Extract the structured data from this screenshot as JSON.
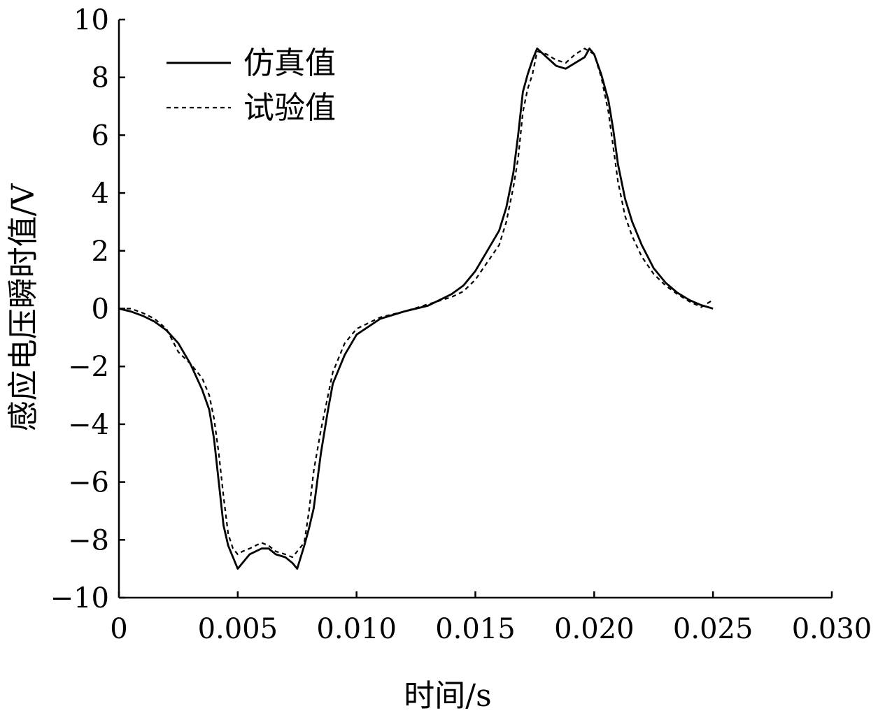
{
  "chart_data": {
    "type": "line",
    "title": "",
    "xlabel": "时间/s",
    "ylabel": "感应电压瞬时值/V",
    "xlim": [
      0,
      0.03
    ],
    "ylim": [
      -10,
      10
    ],
    "x_ticks": [
      0,
      0.005,
      0.01,
      0.015,
      0.02,
      0.025,
      0.03
    ],
    "x_tick_labels": [
      "0",
      "0.005",
      "0.010",
      "0.015",
      "0.020",
      "0.025",
      "0.030"
    ],
    "y_ticks": [
      -10,
      -8,
      -6,
      -4,
      -2,
      0,
      2,
      4,
      6,
      8,
      10
    ],
    "y_tick_labels": [
      "−10",
      "−8",
      "−6",
      "−4",
      "−2",
      "0",
      "2",
      "4",
      "6",
      "8",
      "10"
    ],
    "grid": false,
    "legend_position": "top-left",
    "series": [
      {
        "name": "仿真值",
        "style": "solid",
        "color": "#000000",
        "x": [
          0,
          0.0005,
          0.001,
          0.0015,
          0.002,
          0.0025,
          0.003,
          0.0035,
          0.0038,
          0.004,
          0.0042,
          0.0044,
          0.0046,
          0.0048,
          0.005,
          0.0052,
          0.0055,
          0.006,
          0.0063,
          0.0066,
          0.007,
          0.0073,
          0.0075,
          0.0078,
          0.008,
          0.0082,
          0.0085,
          0.0088,
          0.009,
          0.0095,
          0.01,
          0.011,
          0.012,
          0.013,
          0.014,
          0.0145,
          0.015,
          0.0155,
          0.016,
          0.0163,
          0.0166,
          0.0168,
          0.017,
          0.0172,
          0.0174,
          0.0176,
          0.018,
          0.0184,
          0.0188,
          0.0192,
          0.0196,
          0.0198,
          0.02,
          0.0203,
          0.0206,
          0.0208,
          0.021,
          0.0213,
          0.0216,
          0.022,
          0.0225,
          0.023,
          0.0235,
          0.024,
          0.0245,
          0.025
        ],
        "y": [
          0,
          -0.1,
          -0.25,
          -0.45,
          -0.75,
          -1.2,
          -1.9,
          -2.8,
          -3.5,
          -4.5,
          -6.0,
          -7.5,
          -8.2,
          -8.6,
          -9.0,
          -8.8,
          -8.5,
          -8.3,
          -8.3,
          -8.5,
          -8.6,
          -8.8,
          -9.0,
          -8.2,
          -7.6,
          -6.9,
          -5.0,
          -3.5,
          -2.6,
          -1.6,
          -0.9,
          -0.35,
          -0.1,
          0.1,
          0.5,
          0.8,
          1.3,
          2.0,
          2.7,
          3.5,
          4.7,
          6.0,
          7.5,
          8.1,
          8.6,
          9.0,
          8.7,
          8.4,
          8.3,
          8.5,
          8.7,
          9.0,
          8.8,
          8.1,
          7.2,
          6.2,
          5.0,
          3.8,
          3.0,
          2.2,
          1.4,
          0.9,
          0.55,
          0.3,
          0.12,
          0.0
        ]
      },
      {
        "name": "试验值",
        "style": "dashed",
        "color": "#000000",
        "x": [
          0,
          0.0005,
          0.001,
          0.0015,
          0.002,
          0.0025,
          0.003,
          0.0035,
          0.0038,
          0.004,
          0.0042,
          0.0044,
          0.0046,
          0.0048,
          0.005,
          0.0052,
          0.0055,
          0.006,
          0.0063,
          0.0066,
          0.007,
          0.0073,
          0.0075,
          0.0078,
          0.008,
          0.0082,
          0.0085,
          0.0088,
          0.009,
          0.0095,
          0.01,
          0.011,
          0.012,
          0.013,
          0.014,
          0.0145,
          0.015,
          0.0155,
          0.016,
          0.0163,
          0.0166,
          0.0168,
          0.017,
          0.0172,
          0.0174,
          0.0176,
          0.018,
          0.0184,
          0.0188,
          0.0192,
          0.0196,
          0.0198,
          0.02,
          0.0203,
          0.0206,
          0.0208,
          0.021,
          0.0213,
          0.0216,
          0.022,
          0.0225,
          0.023,
          0.0235,
          0.024,
          0.0245,
          0.025
        ],
        "y": [
          0,
          0.0,
          -0.15,
          -0.35,
          -0.7,
          -1.5,
          -1.9,
          -2.4,
          -3.0,
          -3.8,
          -5.0,
          -6.5,
          -7.8,
          -8.3,
          -8.5,
          -8.4,
          -8.3,
          -8.1,
          -8.2,
          -8.4,
          -8.5,
          -8.6,
          -8.4,
          -8.1,
          -7.0,
          -5.6,
          -4.2,
          -3.0,
          -2.2,
          -1.2,
          -0.7,
          -0.3,
          -0.1,
          0.15,
          0.4,
          0.6,
          1.0,
          1.6,
          2.2,
          3.0,
          4.2,
          5.2,
          6.8,
          7.6,
          8.1,
          8.9,
          8.8,
          8.6,
          8.5,
          8.8,
          9.0,
          8.9,
          8.8,
          8.0,
          6.8,
          5.6,
          4.4,
          3.2,
          2.5,
          1.8,
          1.2,
          0.8,
          0.5,
          0.25,
          0.05,
          0.3
        ]
      }
    ]
  }
}
